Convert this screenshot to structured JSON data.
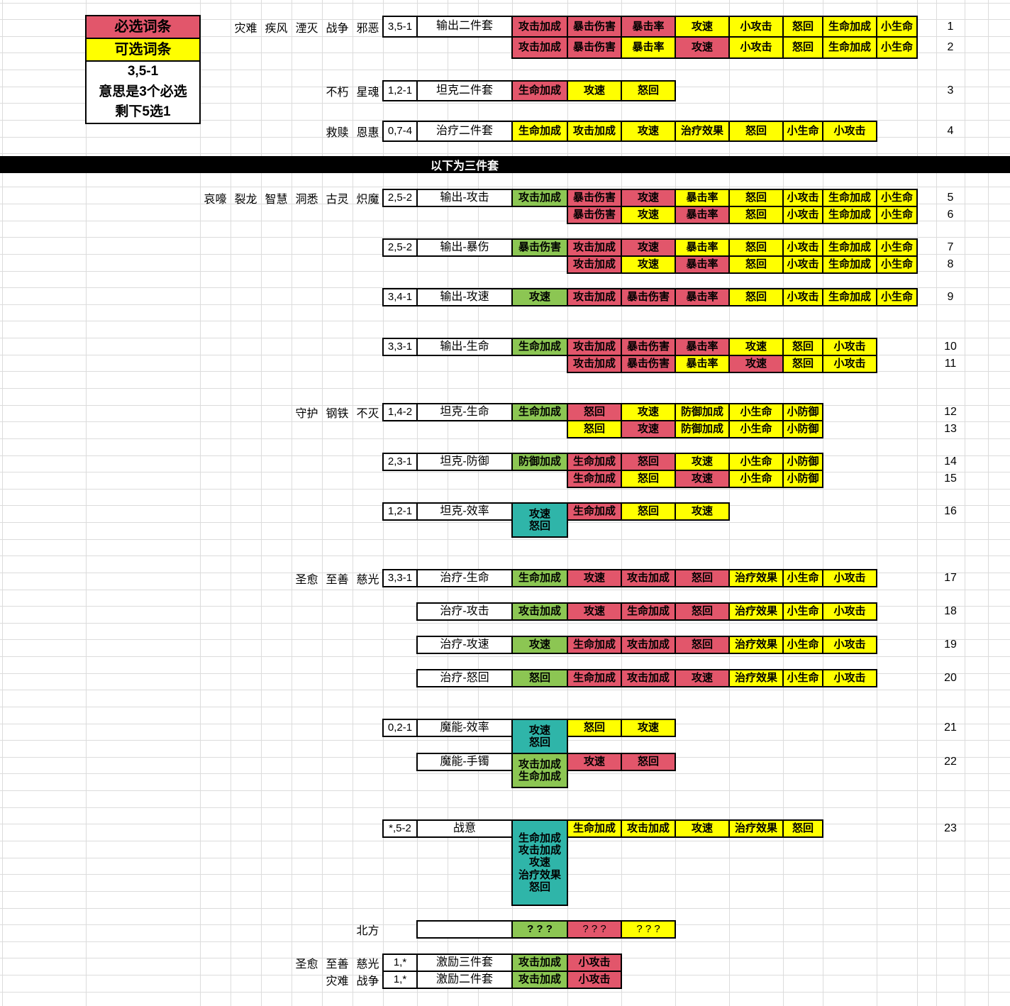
{
  "legend": {
    "required_label": "必选词条",
    "optional_label": "可选词条",
    "note_lines": [
      "3,5-1",
      "意思是3个必选",
      "剩下5选1"
    ]
  },
  "section_divider": "以下为三件套",
  "colors": {
    "required_bg": "#e2566b",
    "optional_bg": "#ffff00",
    "fixed_green_bg": "#8cc653",
    "fixed_teal_bg": "#2fb5a9",
    "divider_bg": "#000000",
    "grid_line": "#dcdcdc"
  },
  "rows": [
    {
      "labels": [
        "灾难",
        "疾风",
        "湮灭",
        "战争",
        "邪恶"
      ],
      "combo": "3,5-1",
      "name": "输出二件套",
      "main": null,
      "attrs": [
        {
          "t": "攻击加成",
          "c": "r"
        },
        {
          "t": "暴击伤害",
          "c": "r"
        },
        {
          "t": "暴击率",
          "c": "r"
        },
        {
          "t": "攻速",
          "c": "o"
        },
        {
          "t": "小攻击",
          "c": "o"
        },
        {
          "t": "怒回",
          "c": "o"
        },
        {
          "t": "生命加成",
          "c": "o"
        },
        {
          "t": "小生命",
          "c": "o"
        }
      ],
      "num": "1"
    },
    {
      "labels": [],
      "combo": null,
      "name": null,
      "main": null,
      "attrs": [
        {
          "t": "攻击加成",
          "c": "r"
        },
        {
          "t": "暴击伤害",
          "c": "r"
        },
        {
          "t": "暴击率",
          "c": "o"
        },
        {
          "t": "攻速",
          "c": "r"
        },
        {
          "t": "小攻击",
          "c": "o"
        },
        {
          "t": "怒回",
          "c": "o"
        },
        {
          "t": "生命加成",
          "c": "o"
        },
        {
          "t": "小生命",
          "c": "o"
        }
      ],
      "num": "2"
    },
    {
      "labels": [
        "不朽",
        "星魂"
      ],
      "combo": "1,2-1",
      "name": "坦克二件套",
      "main": null,
      "attrs": [
        {
          "t": "生命加成",
          "c": "r"
        },
        {
          "t": "攻速",
          "c": "o"
        },
        {
          "t": "怒回",
          "c": "o"
        }
      ],
      "num": "3"
    },
    {
      "labels": [
        "救赎",
        "恩惠"
      ],
      "combo": "0,7-4",
      "name": "治疗二件套",
      "main": null,
      "attrs": [
        {
          "t": "生命加成",
          "c": "o"
        },
        {
          "t": "攻击加成",
          "c": "o"
        },
        {
          "t": "攻速",
          "c": "o"
        },
        {
          "t": "治疗效果",
          "c": "o"
        },
        {
          "t": "怒回",
          "c": "o"
        },
        {
          "t": "小生命",
          "c": "o"
        },
        {
          "t": "小攻击",
          "c": "o"
        }
      ],
      "num": "4"
    },
    {
      "labels": [
        "哀嚎",
        "裂龙",
        "智慧",
        "洞悉",
        "古灵",
        "炽魔"
      ],
      "combo": "2,5-2",
      "name": "输出-攻击",
      "main": {
        "color": "green",
        "lines": [
          "攻击加成"
        ],
        "span": 1
      },
      "attrs": [
        {
          "t": "暴击伤害",
          "c": "r"
        },
        {
          "t": "攻速",
          "c": "r"
        },
        {
          "t": "暴击率",
          "c": "o"
        },
        {
          "t": "怒回",
          "c": "o"
        },
        {
          "t": "小攻击",
          "c": "o"
        },
        {
          "t": "生命加成",
          "c": "o"
        },
        {
          "t": "小生命",
          "c": "o"
        }
      ],
      "num": "5"
    },
    {
      "labels": [],
      "combo": null,
      "name": null,
      "main": null,
      "attrs": [
        {
          "t": "暴击伤害",
          "c": "r"
        },
        {
          "t": "攻速",
          "c": "o"
        },
        {
          "t": "暴击率",
          "c": "r"
        },
        {
          "t": "怒回",
          "c": "o"
        },
        {
          "t": "小攻击",
          "c": "o"
        },
        {
          "t": "生命加成",
          "c": "o"
        },
        {
          "t": "小生命",
          "c": "o"
        }
      ],
      "num": "6",
      "skipMainCol": true
    },
    {
      "labels": [],
      "combo": "2,5-2",
      "name": "输出-暴伤",
      "main": {
        "color": "green",
        "lines": [
          "暴击伤害"
        ],
        "span": 1
      },
      "attrs": [
        {
          "t": "攻击加成",
          "c": "r"
        },
        {
          "t": "攻速",
          "c": "r"
        },
        {
          "t": "暴击率",
          "c": "o"
        },
        {
          "t": "怒回",
          "c": "o"
        },
        {
          "t": "小攻击",
          "c": "o"
        },
        {
          "t": "生命加成",
          "c": "o"
        },
        {
          "t": "小生命",
          "c": "o"
        }
      ],
      "num": "7"
    },
    {
      "labels": [],
      "combo": null,
      "name": null,
      "main": null,
      "attrs": [
        {
          "t": "攻击加成",
          "c": "r"
        },
        {
          "t": "攻速",
          "c": "o"
        },
        {
          "t": "暴击率",
          "c": "r"
        },
        {
          "t": "怒回",
          "c": "o"
        },
        {
          "t": "小攻击",
          "c": "o"
        },
        {
          "t": "生命加成",
          "c": "o"
        },
        {
          "t": "小生命",
          "c": "o"
        }
      ],
      "num": "8",
      "skipMainCol": true
    },
    {
      "labels": [],
      "combo": "3,4-1",
      "name": "输出-攻速",
      "main": {
        "color": "green",
        "lines": [
          "攻速"
        ],
        "span": 1
      },
      "attrs": [
        {
          "t": "攻击加成",
          "c": "r"
        },
        {
          "t": "暴击伤害",
          "c": "r"
        },
        {
          "t": "暴击率",
          "c": "r"
        },
        {
          "t": "怒回",
          "c": "o"
        },
        {
          "t": "小攻击",
          "c": "o"
        },
        {
          "t": "生命加成",
          "c": "o"
        },
        {
          "t": "小生命",
          "c": "o"
        }
      ],
      "num": "9"
    },
    {
      "labels": [],
      "combo": "3,3-1",
      "name": "输出-生命",
      "main": {
        "color": "green",
        "lines": [
          "生命加成"
        ],
        "span": 1
      },
      "attrs": [
        {
          "t": "攻击加成",
          "c": "r"
        },
        {
          "t": "暴击伤害",
          "c": "r"
        },
        {
          "t": "暴击率",
          "c": "r"
        },
        {
          "t": "攻速",
          "c": "o"
        },
        {
          "t": "怒回",
          "c": "o"
        },
        {
          "t": "小攻击",
          "c": "o"
        }
      ],
      "num": "10"
    },
    {
      "labels": [],
      "combo": null,
      "name": null,
      "main": null,
      "attrs": [
        {
          "t": "攻击加成",
          "c": "r"
        },
        {
          "t": "暴击伤害",
          "c": "r"
        },
        {
          "t": "暴击率",
          "c": "o"
        },
        {
          "t": "攻速",
          "c": "r"
        },
        {
          "t": "怒回",
          "c": "o"
        },
        {
          "t": "小攻击",
          "c": "o"
        }
      ],
      "num": "11",
      "skipMainCol": true
    },
    {
      "labels": [
        "守护",
        "钢铁",
        "不灭"
      ],
      "combo": "1,4-2",
      "name": "坦克-生命",
      "main": {
        "color": "green",
        "lines": [
          "生命加成"
        ],
        "span": 1
      },
      "attrs": [
        {
          "t": "怒回",
          "c": "r"
        },
        {
          "t": "攻速",
          "c": "o"
        },
        {
          "t": "防御加成",
          "c": "o"
        },
        {
          "t": "小生命",
          "c": "o"
        },
        {
          "t": "小防御",
          "c": "o"
        }
      ],
      "num": "12"
    },
    {
      "labels": [],
      "combo": null,
      "name": null,
      "main": null,
      "attrs": [
        {
          "t": "怒回",
          "c": "o"
        },
        {
          "t": "攻速",
          "c": "r"
        },
        {
          "t": "防御加成",
          "c": "o"
        },
        {
          "t": "小生命",
          "c": "o"
        },
        {
          "t": "小防御",
          "c": "o"
        }
      ],
      "num": "13",
      "skipMainCol": true
    },
    {
      "labels": [],
      "combo": "2,3-1",
      "name": "坦克-防御",
      "main": {
        "color": "green",
        "lines": [
          "防御加成"
        ],
        "span": 1
      },
      "attrs": [
        {
          "t": "生命加成",
          "c": "r"
        },
        {
          "t": "怒回",
          "c": "r"
        },
        {
          "t": "攻速",
          "c": "o"
        },
        {
          "t": "小生命",
          "c": "o"
        },
        {
          "t": "小防御",
          "c": "o"
        }
      ],
      "num": "14"
    },
    {
      "labels": [],
      "combo": null,
      "name": null,
      "main": null,
      "attrs": [
        {
          "t": "生命加成",
          "c": "r"
        },
        {
          "t": "怒回",
          "c": "o"
        },
        {
          "t": "攻速",
          "c": "r"
        },
        {
          "t": "小生命",
          "c": "o"
        },
        {
          "t": "小防御",
          "c": "o"
        }
      ],
      "num": "15",
      "skipMainCol": true
    },
    {
      "labels": [],
      "combo": "1,2-1",
      "name": "坦克-效率",
      "main": {
        "color": "teal",
        "lines": [
          "攻速",
          "怒回"
        ],
        "span": 2
      },
      "attrs": [
        {
          "t": "生命加成",
          "c": "r"
        },
        {
          "t": "怒回",
          "c": "o"
        },
        {
          "t": "攻速",
          "c": "o"
        }
      ],
      "num": "16"
    },
    {
      "labels": [
        "圣愈",
        "至善",
        "慈光"
      ],
      "combo": "3,3-1",
      "name": "治疗-生命",
      "main": {
        "color": "green",
        "lines": [
          "生命加成"
        ],
        "span": 1
      },
      "attrs": [
        {
          "t": "攻速",
          "c": "r"
        },
        {
          "t": "攻击加成",
          "c": "r"
        },
        {
          "t": "怒回",
          "c": "r"
        },
        {
          "t": "治疗效果",
          "c": "o"
        },
        {
          "t": "小生命",
          "c": "o"
        },
        {
          "t": "小攻击",
          "c": "o"
        }
      ],
      "num": "17"
    },
    {
      "labels": [],
      "combo": null,
      "name": "治疗-攻击",
      "main": {
        "color": "green",
        "lines": [
          "攻击加成"
        ],
        "span": 1
      },
      "attrs": [
        {
          "t": "攻速",
          "c": "r"
        },
        {
          "t": "生命加成",
          "c": "r"
        },
        {
          "t": "怒回",
          "c": "r"
        },
        {
          "t": "治疗效果",
          "c": "o"
        },
        {
          "t": "小生命",
          "c": "o"
        },
        {
          "t": "小攻击",
          "c": "o"
        }
      ],
      "num": "18"
    },
    {
      "labels": [],
      "combo": null,
      "name": "治疗-攻速",
      "main": {
        "color": "green",
        "lines": [
          "攻速"
        ],
        "span": 1
      },
      "attrs": [
        {
          "t": "生命加成",
          "c": "r"
        },
        {
          "t": "攻击加成",
          "c": "r"
        },
        {
          "t": "怒回",
          "c": "r"
        },
        {
          "t": "治疗效果",
          "c": "o"
        },
        {
          "t": "小生命",
          "c": "o"
        },
        {
          "t": "小攻击",
          "c": "o"
        }
      ],
      "num": "19"
    },
    {
      "labels": [],
      "combo": null,
      "name": "治疗-怒回",
      "main": {
        "color": "green",
        "lines": [
          "怒回"
        ],
        "span": 1
      },
      "attrs": [
        {
          "t": "生命加成",
          "c": "r"
        },
        {
          "t": "攻击加成",
          "c": "r"
        },
        {
          "t": "攻速",
          "c": "r"
        },
        {
          "t": "治疗效果",
          "c": "o"
        },
        {
          "t": "小生命",
          "c": "o"
        },
        {
          "t": "小攻击",
          "c": "o"
        }
      ],
      "num": "20"
    },
    {
      "labels": [],
      "combo": "0,2-1",
      "name": "魔能-效率",
      "main": {
        "color": "teal",
        "lines": [
          "攻速",
          "怒回"
        ],
        "span": 2
      },
      "attrs": [
        {
          "t": "怒回",
          "c": "o"
        },
        {
          "t": "攻速",
          "c": "o"
        }
      ],
      "num": "21"
    },
    {
      "labels": [],
      "combo": null,
      "name": "魔能-手镯",
      "main": {
        "color": "green",
        "lines": [
          "攻击加成",
          "生命加成"
        ],
        "span": 2
      },
      "attrs": [
        {
          "t": "攻速",
          "c": "r"
        },
        {
          "t": "怒回",
          "c": "r"
        }
      ],
      "num": "22"
    },
    {
      "labels": [],
      "combo": "*,5-2",
      "name": "战意",
      "main": {
        "color": "teal",
        "lines": [
          "生命加成",
          "攻击加成",
          "攻速",
          "治疗效果",
          "怒回"
        ],
        "span": 5
      },
      "attrs": [
        {
          "t": "生命加成",
          "c": "o"
        },
        {
          "t": "攻击加成",
          "c": "o"
        },
        {
          "t": "攻速",
          "c": "o"
        },
        {
          "t": "治疗效果",
          "c": "o"
        },
        {
          "t": "怒回",
          "c": "o"
        }
      ],
      "num": "23"
    },
    {
      "labels": [
        "北方"
      ],
      "combo": null,
      "name": "",
      "main": {
        "color": "green",
        "lines": [
          "? ? ?"
        ],
        "span": 1
      },
      "attrs": [
        {
          "t": "? ? ?",
          "c": "r",
          "w": "n"
        },
        {
          "t": "? ? ?",
          "c": "o",
          "w": "n"
        }
      ],
      "num": null
    },
    {
      "labels": [
        "圣愈",
        "至善",
        "慈光"
      ],
      "combo": "1,*",
      "name": "激励三件套",
      "main": {
        "color": "green",
        "lines": [
          "攻击加成"
        ],
        "span": 1
      },
      "attrs": [
        {
          "t": "小攻击",
          "c": "r"
        }
      ],
      "num": null
    },
    {
      "labels": [
        "灾难",
        "战争"
      ],
      "combo": "1,*",
      "name": "激励二件套",
      "main": {
        "color": "green",
        "lines": [
          "攻击加成"
        ],
        "span": 1
      },
      "attrs": [
        {
          "t": "小攻击",
          "c": "r"
        }
      ],
      "num": null
    }
  ]
}
